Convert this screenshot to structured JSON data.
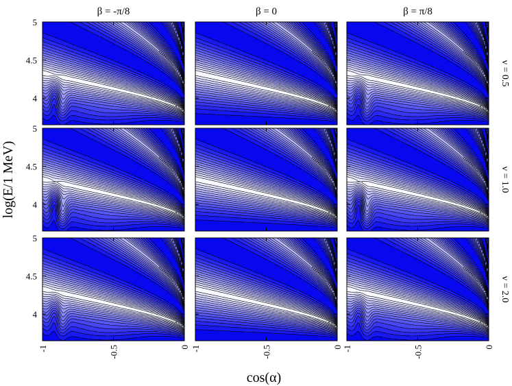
{
  "chart_data": {
    "type": "heatmap",
    "layout": "3x3 grid of contour panels",
    "columns": [
      {
        "label": "β = -π/8",
        "beta": "-π/8"
      },
      {
        "label": "β = 0",
        "beta": "0"
      },
      {
        "label": "β = π/8",
        "beta": "π/8"
      }
    ],
    "rows": [
      {
        "label": "ν = 0.5",
        "nu": 0.5
      },
      {
        "label": "ν = 1.0",
        "nu": 1.0
      },
      {
        "label": "ν = 2.0",
        "nu": 2.0
      }
    ],
    "xlabel": "cos(α)",
    "ylabel": "log(E/1 MeV)",
    "xlim": [
      -1,
      0
    ],
    "ylim": [
      3.65,
      5
    ],
    "x_ticks": [
      -1,
      -0.5,
      0
    ],
    "x_tick_labels": [
      "-1",
      "-0.5",
      "0"
    ],
    "y_ticks": [
      4,
      4.5,
      5
    ],
    "y_tick_labels": [
      "4",
      "4.5",
      "5"
    ],
    "colormap": {
      "low": "#ffffff",
      "high": "#0000ee",
      "contour_lines": "#000000"
    },
    "contour_levels": 16,
    "grid": false,
    "legend": "none"
  }
}
